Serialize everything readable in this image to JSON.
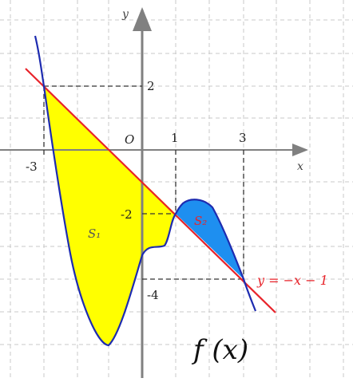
{
  "diagram": {
    "colors": {
      "grid": "#c9c9c9",
      "axis": "#808080",
      "curve": "#1d2bb0",
      "line": "#e8232a",
      "region_s1": "#ffff00",
      "region_s2": "#1e8ff0",
      "guide": "#333333"
    },
    "axes": {
      "x_label": "x",
      "y_label": "y",
      "origin_label": "O"
    },
    "ticks": {
      "x_neg3": "-3",
      "x_1": "1",
      "x_3": "3",
      "y_2": "2",
      "y_neg2": "-2",
      "y_neg4": "-4"
    },
    "regions": {
      "s1": "S₁",
      "s2": "S₂"
    },
    "line_label": "y = −x − 1",
    "function_label": "f (x)"
  }
}
